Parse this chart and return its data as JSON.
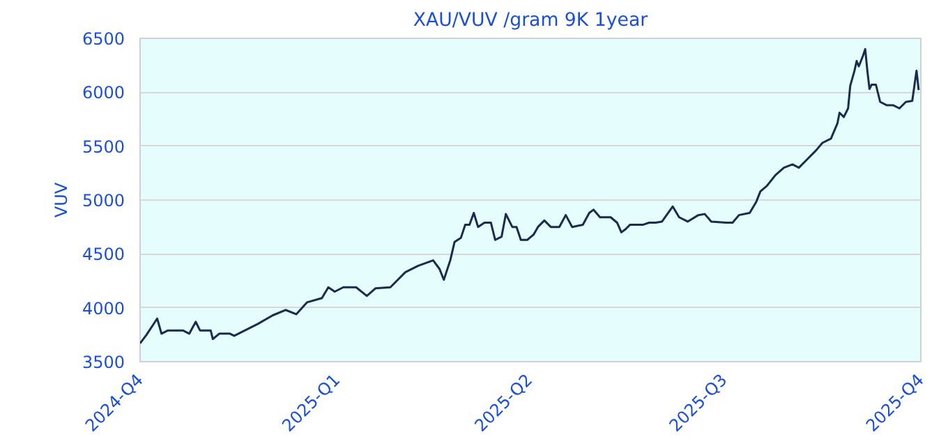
{
  "chart_data": {
    "type": "line",
    "title": "XAU/VUV /gram 9K 1year",
    "ylabel": "VUV",
    "x": [
      "2024-10-01",
      "2024-10-04",
      "2024-10-08",
      "2024-10-09",
      "2024-10-11",
      "2024-10-14",
      "2024-10-21",
      "2024-10-24",
      "2024-10-27",
      "2024-10-29",
      "2024-11-03",
      "2024-11-04",
      "2024-11-07",
      "2024-11-12",
      "2024-11-14",
      "2024-11-19",
      "2024-11-25",
      "2024-12-02",
      "2024-12-08",
      "2024-12-13",
      "2024-12-18",
      "2024-12-25",
      "2024-12-28",
      "2024-12-31",
      "2025-01-04",
      "2025-01-10",
      "2025-01-15",
      "2025-01-19",
      "2025-01-26",
      "2025-02-02",
      "2025-02-08",
      "2025-02-15",
      "2025-02-18",
      "2025-02-20",
      "2025-02-23",
      "2025-02-25",
      "2025-02-28",
      "2025-03-02",
      "2025-03-04",
      "2025-03-06",
      "2025-03-08",
      "2025-03-11",
      "2025-03-14",
      "2025-03-16",
      "2025-03-19",
      "2025-03-21",
      "2025-03-24",
      "2025-03-26",
      "2025-03-28",
      "2025-03-31",
      "2025-04-03",
      "2025-04-05",
      "2025-04-08",
      "2025-04-11",
      "2025-04-15",
      "2025-04-18",
      "2025-04-21",
      "2025-04-26",
      "2025-04-29",
      "2025-05-01",
      "2025-05-04",
      "2025-05-09",
      "2025-05-12",
      "2025-05-14",
      "2025-05-16",
      "2025-05-18",
      "2025-05-24",
      "2025-05-27",
      "2025-05-30",
      "2025-06-02",
      "2025-06-07",
      "2025-06-10",
      "2025-06-14",
      "2025-06-19",
      "2025-06-22",
      "2025-06-25",
      "2025-07-02",
      "2025-07-05",
      "2025-07-08",
      "2025-07-13",
      "2025-07-16",
      "2025-07-18",
      "2025-07-21",
      "2025-07-25",
      "2025-07-29",
      "2025-08-02",
      "2025-08-05",
      "2025-08-09",
      "2025-08-13",
      "2025-08-16",
      "2025-08-20",
      "2025-08-23",
      "2025-08-24",
      "2025-08-26",
      "2025-08-28",
      "2025-08-29",
      "2025-08-31",
      "2025-09-01",
      "2025-09-02",
      "2025-09-04",
      "2025-09-05",
      "2025-09-06",
      "2025-09-07",
      "2025-09-08",
      "2025-09-10",
      "2025-09-12",
      "2025-09-15",
      "2025-09-18",
      "2025-09-21",
      "2025-09-24",
      "2025-09-27",
      "2025-09-28",
      "2025-09-29",
      "2025-09-30"
    ],
    "series": [
      {
        "color": "#1a2c4e",
        "values": [
          3670,
          3750,
          3870,
          3900,
          3760,
          3790,
          3790,
          3760,
          3870,
          3790,
          3790,
          3710,
          3760,
          3760,
          3740,
          3790,
          3850,
          3930,
          3980,
          3940,
          4050,
          4090,
          4190,
          4150,
          4190,
          4190,
          4110,
          4180,
          4190,
          4330,
          4390,
          4440,
          4360,
          4260,
          4440,
          4610,
          4650,
          4770,
          4770,
          4880,
          4750,
          4790,
          4790,
          4630,
          4660,
          4870,
          4750,
          4750,
          4630,
          4630,
          4680,
          4750,
          4810,
          4750,
          4750,
          4860,
          4750,
          4770,
          4880,
          4910,
          4840,
          4840,
          4790,
          4700,
          4730,
          4770,
          4770,
          4790,
          4790,
          4800,
          4940,
          4840,
          4800,
          4860,
          4870,
          4800,
          4790,
          4790,
          4860,
          4880,
          4980,
          5080,
          5130,
          5230,
          5300,
          5330,
          5300,
          5380,
          5460,
          5530,
          5570,
          5710,
          5810,
          5770,
          5850,
          6060,
          6200,
          6290,
          6240,
          6340,
          6400,
          6200,
          6030,
          6070,
          6070,
          5910,
          5880,
          5880,
          5850,
          5910,
          5920,
          6060,
          6200,
          6020
        ]
      }
    ],
    "xlim": [
      "2024-10-01",
      "2025-10-01"
    ],
    "xticks": [
      {
        "value": "2024-10-01",
        "label": "2024-Q4"
      },
      {
        "value": "2025-01-01",
        "label": "2025-Q1"
      },
      {
        "value": "2025-04-01",
        "label": "2025-Q2"
      },
      {
        "value": "2025-07-01",
        "label": "2025-Q3"
      },
      {
        "value": "2025-10-01",
        "label": "2025-Q4"
      }
    ],
    "ylim": [
      3500,
      6500
    ],
    "yticks": [
      3500,
      4000,
      4500,
      5000,
      5500,
      6000,
      6500
    ],
    "grid": "y",
    "marker": "none",
    "line_style": "solid"
  }
}
